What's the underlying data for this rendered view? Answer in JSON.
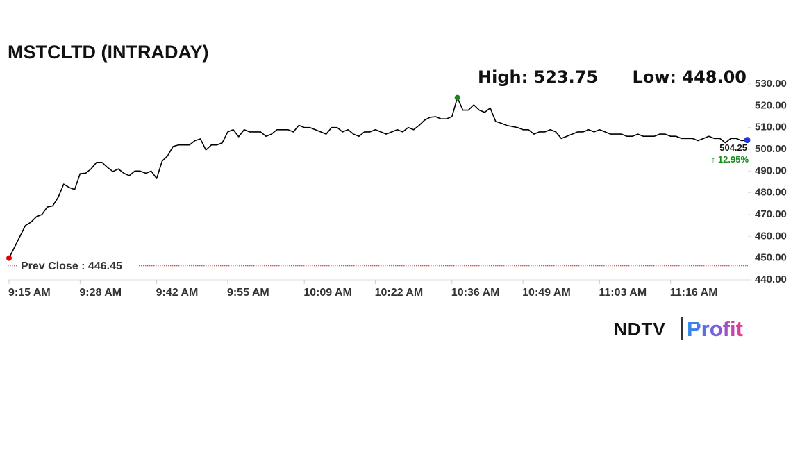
{
  "chart_data": {
    "type": "line",
    "title": "MSTCLTD (INTRADAY)",
    "high_label": "High: 523.75",
    "low_label": "Low: 448.00",
    "categories": [
      "9:15 AM",
      null,
      null,
      null,
      null,
      null,
      null,
      null,
      null,
      null,
      null,
      null,
      null,
      "9:28 AM",
      null,
      null,
      null,
      null,
      null,
      null,
      null,
      null,
      null,
      null,
      null,
      null,
      null,
      "9:42 AM",
      null,
      null,
      null,
      null,
      null,
      null,
      null,
      null,
      null,
      null,
      null,
      null,
      "9:55 AM",
      null,
      null,
      null,
      null,
      null,
      null,
      null,
      null,
      null,
      null,
      null,
      null,
      null,
      "10:09 AM",
      null,
      null,
      null,
      null,
      null,
      null,
      null,
      null,
      null,
      null,
      null,
      null,
      "10:22 AM",
      null,
      null,
      null,
      null,
      null,
      null,
      null,
      null,
      null,
      null,
      null,
      null,
      null,
      "10:36 AM",
      null,
      null,
      null,
      null,
      null,
      null,
      null,
      null,
      null,
      null,
      null,
      null,
      "10:49 AM",
      null,
      null,
      null,
      null,
      null,
      null,
      null,
      null,
      null,
      null,
      null,
      null,
      null,
      "11:03 AM",
      null,
      null,
      null,
      null,
      null,
      null,
      null,
      null,
      null,
      null,
      null,
      null,
      "11:16 AM",
      null,
      null,
      null,
      null,
      null,
      null,
      null,
      null,
      null,
      null,
      null,
      null,
      null,
      null
    ],
    "series": [
      {
        "color": "#000000",
        "values": [
          450,
          455,
          460,
          465,
          466.5,
          469,
          470,
          473.5,
          474,
          478,
          484,
          482.5,
          481.5,
          488.8,
          489,
          491,
          494,
          494,
          491.7,
          489.8,
          491,
          489,
          487.9,
          490,
          490,
          489,
          490,
          486.6,
          494.6,
          497,
          501.3,
          502,
          502,
          502,
          504,
          504.8,
          499.7,
          502,
          502,
          503,
          508,
          509,
          505.8,
          509,
          508,
          508,
          508,
          506,
          507,
          509,
          509,
          509,
          508,
          511,
          510,
          510,
          509,
          508,
          507,
          510,
          510,
          508,
          509,
          507,
          506,
          508,
          508,
          509,
          508,
          507,
          508,
          509,
          508,
          510,
          509,
          511,
          513.4,
          514.7,
          515,
          514,
          514,
          515,
          523.75,
          518,
          518,
          520.4,
          518,
          517,
          519,
          512.8,
          512,
          511,
          510.5,
          510,
          509,
          509,
          507,
          508,
          508,
          509,
          508,
          505,
          506,
          507,
          508,
          508,
          509,
          508,
          509,
          508,
          507,
          507,
          507,
          506,
          506,
          507,
          506,
          506,
          506,
          507,
          507,
          506,
          506,
          505,
          505,
          505,
          504,
          505,
          506,
          505,
          505,
          503,
          505,
          505,
          504,
          504.25
        ]
      }
    ],
    "marker_colors": {
      "first": "#e00000",
      "high": "#138a13",
      "last": "#1f35d6"
    },
    "last_label": "504.25",
    "change_label": "↑ 12.95%",
    "prev_close": 446.45,
    "prev_close_label": "Prev Close : 446.45",
    "prev_close_color": "#c62020",
    "ylim": [
      440,
      530
    ],
    "yticks": [
      {
        "value": 440,
        "label": "440.00"
      },
      {
        "value": 450,
        "label": "450.00"
      },
      {
        "value": 460,
        "label": "460.00"
      },
      {
        "value": 470,
        "label": "470.00"
      },
      {
        "value": 480,
        "label": "480.00"
      },
      {
        "value": 490,
        "label": "490.00"
      },
      {
        "value": 500,
        "label": "500.00"
      },
      {
        "value": 510,
        "label": "510.00"
      },
      {
        "value": 520,
        "label": "520.00"
      },
      {
        "value": 530,
        "label": "530.00"
      }
    ],
    "grid": false
  },
  "logo": {
    "left": "NDTV",
    "right": "Profit"
  }
}
